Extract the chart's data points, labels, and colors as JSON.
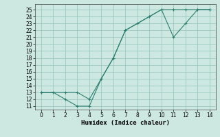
{
  "xlabel": "Humidex (Indice chaleur)",
  "line1_x": [
    0,
    1,
    2,
    3,
    4,
    5,
    6,
    7,
    8,
    9,
    10,
    11,
    12,
    13,
    14
  ],
  "line1_y": [
    13,
    13,
    12,
    11,
    11,
    15,
    18,
    22,
    23,
    24,
    25,
    25,
    25,
    25,
    25
  ],
  "line2_x": [
    0,
    2,
    3,
    4,
    5,
    6,
    7,
    9,
    10,
    11,
    12,
    13,
    14
  ],
  "line2_y": [
    13,
    13,
    13,
    12,
    15,
    18,
    22,
    24,
    25,
    21,
    23,
    25,
    25
  ],
  "line_color": "#2d7e6f",
  "bg_color": "#cce8e0",
  "grid_color": "#9dc8be",
  "xlim": [
    -0.5,
    14.5
  ],
  "ylim": [
    10.5,
    25.8
  ],
  "yticks": [
    11,
    12,
    13,
    14,
    15,
    16,
    17,
    18,
    19,
    20,
    21,
    22,
    23,
    24,
    25
  ],
  "xticks": [
    0,
    1,
    2,
    3,
    4,
    5,
    6,
    7,
    8,
    9,
    10,
    11,
    12,
    13,
    14
  ],
  "tick_fontsize": 5.5,
  "label_fontsize": 6.5,
  "marker": "+"
}
